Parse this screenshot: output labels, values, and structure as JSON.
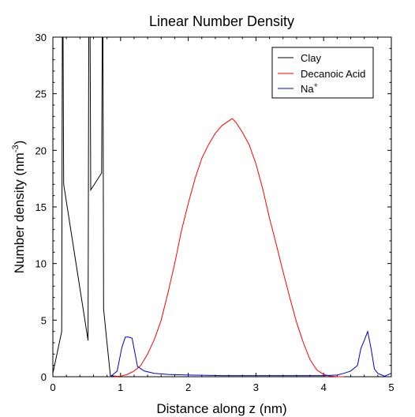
{
  "chart_data": {
    "type": "line",
    "title": "Linear Number Density",
    "xlabel": "Distance along z (nm)",
    "ylabel": "Number density (nm",
    "ylabel_sup": "-3",
    "ylabel_tail": ")",
    "xlim": [
      0,
      5
    ],
    "ylim": [
      0,
      30
    ],
    "xticks": [
      "0",
      "1",
      "2",
      "3",
      "4",
      "5"
    ],
    "yticks": [
      "0",
      "5",
      "10",
      "15",
      "20",
      "25",
      "30"
    ],
    "grid": false,
    "legend_position": "top-right",
    "series": [
      {
        "name": "Clay",
        "color": "#000000",
        "x": [
          0.0,
          0.13,
          0.14,
          0.15,
          0.16,
          0.52,
          0.53,
          0.54,
          0.55,
          0.56,
          0.72,
          0.73,
          0.74,
          0.75,
          0.8,
          0.85,
          1.0,
          1.5,
          2.0,
          2.5,
          3.0,
          3.5,
          4.0,
          4.5,
          5.0
        ],
        "y": [
          0.3,
          4.0,
          30,
          30,
          17.0,
          3.2,
          30,
          30,
          30,
          16.5,
          18.0,
          30,
          30,
          6.0,
          3.0,
          0.1,
          0.0,
          0.0,
          0.0,
          0.0,
          0.0,
          0.0,
          0.0,
          0.0,
          0.0
        ]
      },
      {
        "name": "Decanoic Acid",
        "color": "#ff0000",
        "x": [
          0.9,
          1.0,
          1.1,
          1.2,
          1.3,
          1.4,
          1.5,
          1.6,
          1.7,
          1.8,
          1.9,
          2.0,
          2.1,
          2.2,
          2.3,
          2.4,
          2.5,
          2.6,
          2.65,
          2.7,
          2.8,
          2.9,
          3.0,
          3.1,
          3.2,
          3.3,
          3.4,
          3.5,
          3.6,
          3.7,
          3.8,
          3.9,
          4.0,
          4.1,
          4.2,
          4.3
        ],
        "y": [
          0.0,
          0.05,
          0.2,
          0.5,
          1.0,
          2.0,
          3.3,
          5.0,
          7.4,
          10.0,
          12.9,
          15.3,
          17.5,
          19.3,
          20.5,
          21.5,
          22.2,
          22.6,
          22.8,
          22.5,
          21.6,
          20.5,
          18.8,
          16.6,
          14.0,
          11.7,
          9.3,
          7.0,
          4.8,
          3.0,
          1.5,
          0.6,
          0.2,
          0.05,
          0.0,
          0.0
        ]
      },
      {
        "name": "Na",
        "name_sup": "+",
        "color": "#0000cc",
        "x": [
          0.85,
          0.95,
          1.02,
          1.07,
          1.12,
          1.17,
          1.25,
          1.35,
          1.5,
          1.7,
          2.0,
          2.5,
          3.0,
          3.5,
          4.0,
          4.2,
          4.3,
          4.4,
          4.5,
          4.55,
          4.6,
          4.65,
          4.7,
          4.75,
          4.8,
          4.9,
          5.0
        ],
        "y": [
          0.0,
          0.5,
          2.6,
          3.5,
          3.5,
          3.4,
          0.9,
          0.5,
          0.3,
          0.2,
          0.15,
          0.1,
          0.1,
          0.1,
          0.1,
          0.15,
          0.3,
          0.5,
          1.0,
          2.5,
          3.2,
          4.0,
          2.5,
          0.7,
          0.3,
          0.05,
          0.3
        ]
      }
    ]
  }
}
